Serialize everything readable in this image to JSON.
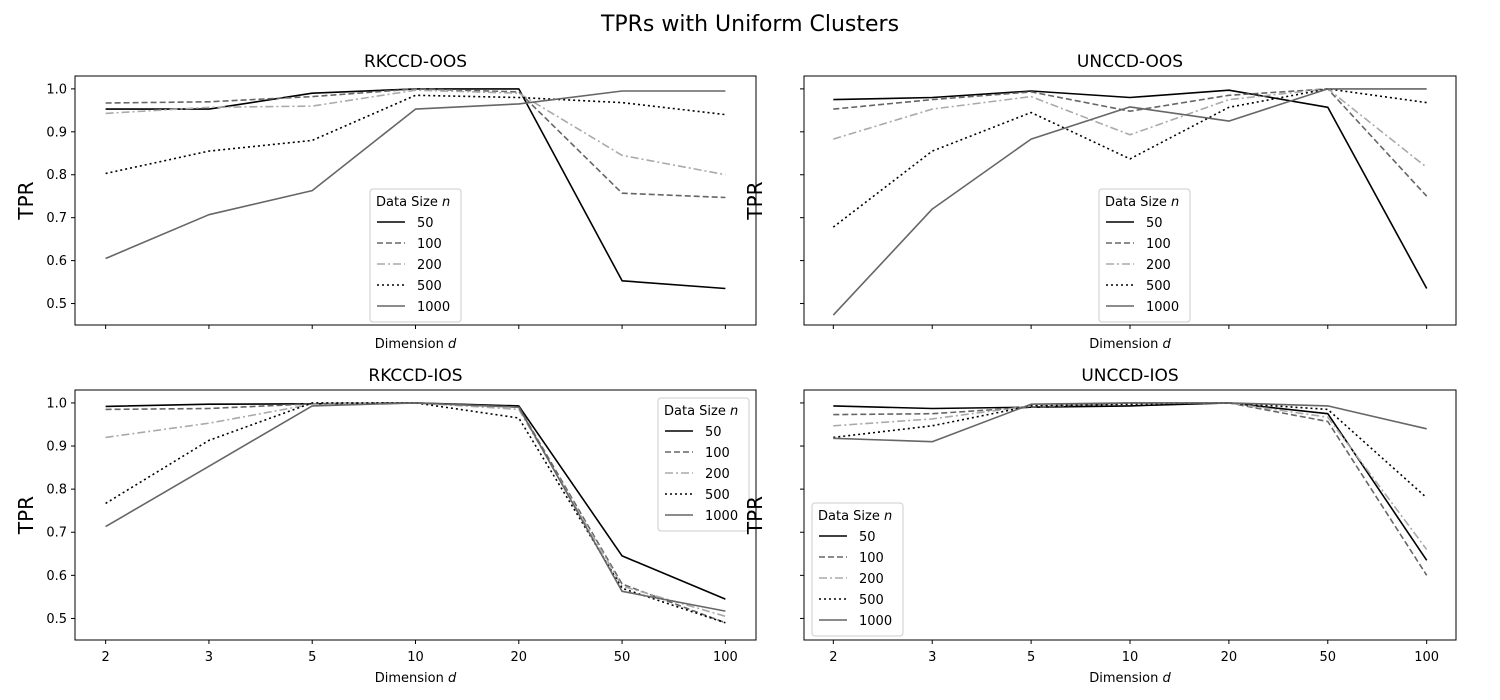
{
  "figure_title": "TPRs with Uniform Clusters",
  "legend_title": "Data Size n",
  "chart_data": [
    {
      "type": "line",
      "title": "RKCCD-OOS",
      "xlabel": "Dimension d",
      "ylabel": "TPR",
      "categories": [
        "2",
        "3",
        "5",
        "10",
        "20",
        "50",
        "100"
      ],
      "ylim": [
        0.45,
        1.03
      ],
      "yticks": [
        "0.5",
        "0.6",
        "0.7",
        "0.8",
        "0.9",
        "1.0"
      ],
      "show_xticklabels": false,
      "show_yticklabels": true,
      "legend": {
        "title": "Data Size n",
        "position": "lower-center"
      },
      "series": [
        {
          "name": "50",
          "values": [
            0.953,
            0.953,
            0.99,
            1.0,
            1.0,
            0.553,
            0.535
          ]
        },
        {
          "name": "100",
          "values": [
            0.967,
            0.97,
            0.982,
            1.0,
            0.993,
            0.757,
            0.747
          ]
        },
        {
          "name": "200",
          "values": [
            0.943,
            0.957,
            0.96,
            0.997,
            0.99,
            0.845,
            0.8
          ]
        },
        {
          "name": "500",
          "values": [
            0.803,
            0.855,
            0.88,
            0.985,
            0.98,
            0.968,
            0.94
          ]
        },
        {
          "name": "1000",
          "values": [
            0.605,
            0.707,
            0.763,
            0.953,
            0.965,
            0.995,
            0.995
          ]
        }
      ]
    },
    {
      "type": "line",
      "title": "UNCCD-OOS",
      "xlabel": "Dimension d",
      "ylabel": "TPR",
      "categories": [
        "2",
        "3",
        "5",
        "10",
        "20",
        "50",
        "100"
      ],
      "ylim": [
        0.45,
        1.03
      ],
      "yticks": [
        "0.5",
        "0.6",
        "0.7",
        "0.8",
        "0.9",
        "1.0"
      ],
      "show_xticklabels": false,
      "show_yticklabels": false,
      "legend": {
        "title": "Data Size n",
        "position": "lower-center"
      },
      "series": [
        {
          "name": "50",
          "values": [
            0.975,
            0.98,
            0.995,
            0.98,
            0.997,
            0.957,
            0.535
          ]
        },
        {
          "name": "100",
          "values": [
            0.953,
            0.975,
            0.993,
            0.948,
            0.985,
            1.0,
            0.75
          ]
        },
        {
          "name": "200",
          "values": [
            0.883,
            0.953,
            0.982,
            0.893,
            0.975,
            1.0,
            0.817
          ]
        },
        {
          "name": "500",
          "values": [
            0.678,
            0.855,
            0.945,
            0.837,
            0.957,
            1.0,
            0.968
          ]
        },
        {
          "name": "1000",
          "values": [
            0.473,
            0.72,
            0.883,
            0.958,
            0.925,
            1.0,
            1.0
          ]
        }
      ]
    },
    {
      "type": "line",
      "title": "RKCCD-IOS",
      "xlabel": "Dimension d",
      "ylabel": "TPR",
      "categories": [
        "2",
        "3",
        "5",
        "10",
        "20",
        "50",
        "100"
      ],
      "ylim": [
        0.45,
        1.03
      ],
      "yticks": [
        "0.5",
        "0.6",
        "0.7",
        "0.8",
        "0.9",
        "1.0"
      ],
      "show_xticklabels": true,
      "show_yticklabels": true,
      "legend": {
        "title": "Data Size n",
        "position": "upper-right"
      },
      "series": [
        {
          "name": "50",
          "values": [
            0.992,
            0.997,
            0.998,
            1.0,
            0.993,
            0.645,
            0.545
          ]
        },
        {
          "name": "100",
          "values": [
            0.985,
            0.987,
            0.998,
            1.0,
            0.99,
            0.58,
            0.49
          ]
        },
        {
          "name": "200",
          "values": [
            0.92,
            0.953,
            0.997,
            1.0,
            0.985,
            0.575,
            0.505
          ]
        },
        {
          "name": "500",
          "values": [
            0.767,
            0.913,
            1.0,
            1.0,
            0.965,
            0.57,
            0.49
          ]
        },
        {
          "name": "1000",
          "values": [
            0.713,
            0.853,
            0.993,
            1.0,
            0.99,
            0.563,
            0.517
          ]
        }
      ]
    },
    {
      "type": "line",
      "title": "UNCCD-IOS",
      "xlabel": "Dimension d",
      "ylabel": "TPR",
      "categories": [
        "2",
        "3",
        "5",
        "10",
        "20",
        "50",
        "100"
      ],
      "ylim": [
        0.45,
        1.03
      ],
      "yticks": [
        "0.5",
        "0.6",
        "0.7",
        "0.8",
        "0.9",
        "1.0"
      ],
      "show_xticklabels": true,
      "show_yticklabels": false,
      "legend": {
        "title": "Data Size n",
        "position": "lower-left"
      },
      "series": [
        {
          "name": "50",
          "values": [
            0.993,
            0.987,
            0.99,
            0.993,
            1.0,
            0.975,
            0.635
          ]
        },
        {
          "name": "100",
          "values": [
            0.973,
            0.975,
            0.99,
            1.0,
            1.0,
            0.957,
            0.6
          ]
        },
        {
          "name": "200",
          "values": [
            0.947,
            0.963,
            0.993,
            1.0,
            1.0,
            0.967,
            0.66
          ]
        },
        {
          "name": "500",
          "values": [
            0.92,
            0.947,
            0.993,
            0.997,
            1.0,
            0.985,
            0.78
          ]
        },
        {
          "name": "1000",
          "values": [
            0.918,
            0.91,
            0.997,
            1.0,
            1.0,
            0.993,
            0.94
          ]
        }
      ]
    }
  ],
  "series_styles": [
    {
      "color": "#000000",
      "dash": "solid"
    },
    {
      "color": "#666666",
      "dash": "dashed"
    },
    {
      "color": "#aaaaaa",
      "dash": "dashdot"
    },
    {
      "color": "#000000",
      "dash": "dotted"
    },
    {
      "color": "#666666",
      "dash": "solid"
    }
  ]
}
